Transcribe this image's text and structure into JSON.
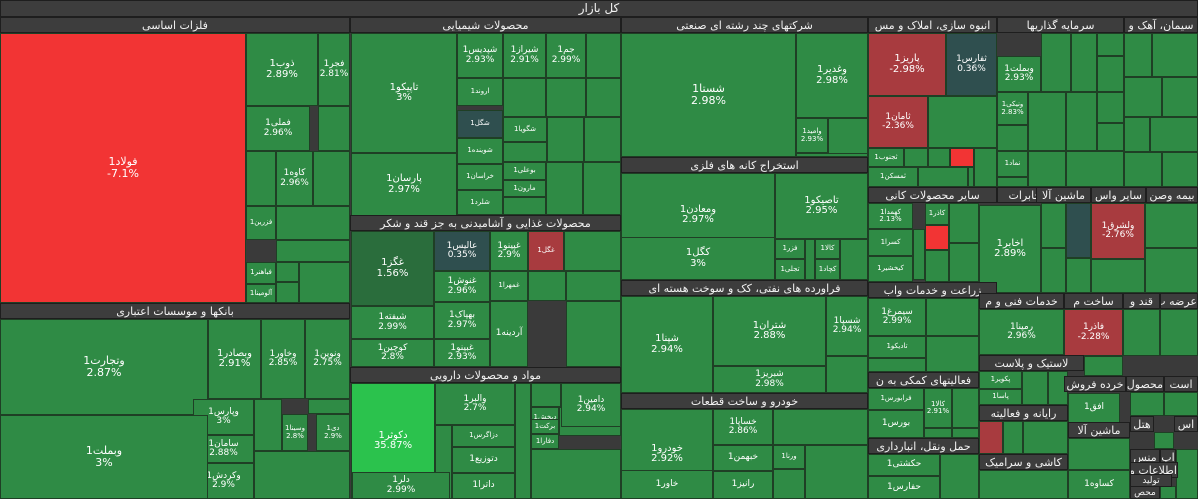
{
  "title": "کل بازار",
  "colors": {
    "green": "#2f8b45",
    "green_alt": "#2e8a44",
    "green_dark": "#2a6d3c",
    "green_bright": "#2bc24d",
    "red": "#f23434",
    "red_dark": "#a83b3f",
    "slate": "#2f4f4f",
    "header": "#3d3d3d"
  },
  "sectors": [
    {
      "id": "s1",
      "name": "فلزات اساسی"
    },
    {
      "id": "s2",
      "name": "محصولات شیمیایی"
    },
    {
      "id": "s3",
      "name": "شرکتهای چند رشته ای صنعتی"
    },
    {
      "id": "s4",
      "name": "انبوه سازی، املاک و مس"
    },
    {
      "id": "s5",
      "name": "سرمایه گذاریها"
    },
    {
      "id": "s6",
      "name": "سیمان، آهک و"
    },
    {
      "id": "s7",
      "name": "بانکها و موسسات اعتباری"
    },
    {
      "id": "s8",
      "name": "محصولات غذایی و آشامیدنی به جز قند و شکر"
    },
    {
      "id": "s9",
      "name": "استخراج کانه های فلزی"
    },
    {
      "id": "s10",
      "name": "سایر محصولات کانی"
    },
    {
      "id": "s11",
      "name": "مخابرات"
    },
    {
      "id": "s12",
      "name": "ماشین آلا"
    },
    {
      "id": "s13",
      "name": "سایر واس"
    },
    {
      "id": "s14",
      "name": "بیمه وصن"
    },
    {
      "id": "s15",
      "name": "فراورده های نفتی، کک و سوخت هسته ای"
    },
    {
      "id": "s16",
      "name": "زراعت و خدمات واب"
    },
    {
      "id": "s17",
      "name": "خدمات فنی و م"
    },
    {
      "id": "s18",
      "name": "ساخت م"
    },
    {
      "id": "s19",
      "name": "قند و"
    },
    {
      "id": "s20",
      "name": "عرضه ب"
    },
    {
      "id": "s21",
      "name": "مواد و محصولات دارویی"
    },
    {
      "id": "s22",
      "name": "لاستیک و پلاست"
    },
    {
      "id": "s23",
      "name": "فعالیتهای کمکی به ن"
    },
    {
      "id": "s24",
      "name": "خرده فروش"
    },
    {
      "id": "s25",
      "name": "محصول"
    },
    {
      "id": "s26",
      "name": "است"
    },
    {
      "id": "s27",
      "name": "خودرو و ساخت قطعات"
    },
    {
      "id": "s28",
      "name": "رایانه و فعالیته"
    },
    {
      "id": "s29",
      "name": "ماشین آلا"
    },
    {
      "id": "s30",
      "name": "هتل"
    },
    {
      "id": "s31",
      "name": "اس"
    },
    {
      "id": "s32",
      "name": "حمل ونقل، انبارداری"
    },
    {
      "id": "s33",
      "name": "کاشی و سرامیک"
    },
    {
      "id": "s34",
      "name": "منس"
    },
    {
      "id": "s35",
      "name": "اپ"
    },
    {
      "id": "s36",
      "name": "اطلاعات و"
    },
    {
      "id": "s37",
      "name": "تولید"
    },
    {
      "id": "s38",
      "name": "محص"
    }
  ],
  "tiles": [
    {
      "id": "t1",
      "name": "فولاد1",
      "change": "-7.1%"
    },
    {
      "id": "t2",
      "name": "ذوب1",
      "change": "2.89%"
    },
    {
      "id": "t3",
      "name": "فجر1",
      "change": "2.81%"
    },
    {
      "id": "t4",
      "name": "فملی1",
      "change": "2.96%"
    },
    {
      "id": "t5",
      "name": "کاوه1",
      "change": "2.96%"
    },
    {
      "id": "t6",
      "name": "فزرین1",
      "change": ""
    },
    {
      "id": "t7",
      "name": "فباهنر1",
      "change": ""
    },
    {
      "id": "t8",
      "name": "آلومینا1",
      "change": ""
    },
    {
      "id": "t9",
      "name": "تاپیکو1",
      "change": "3%"
    },
    {
      "id": "t10",
      "name": "پارسان1",
      "change": "2.97%"
    },
    {
      "id": "t11",
      "name": "شپدیس1",
      "change": "2.93%"
    },
    {
      "id": "t12",
      "name": "شیراز1",
      "change": "2.91%"
    },
    {
      "id": "t13",
      "name": "جم1",
      "change": "2.99%"
    },
    {
      "id": "t14",
      "name": "اروند1",
      "change": ""
    },
    {
      "id": "t15",
      "name": "شگل1",
      "change": ""
    },
    {
      "id": "t16",
      "name": "شوینده1",
      "change": ""
    },
    {
      "id": "t17",
      "name": "خراسان1",
      "change": ""
    },
    {
      "id": "t18",
      "name": "شلرد1",
      "change": ""
    },
    {
      "id": "t19",
      "name": "شگویا1",
      "change": ""
    },
    {
      "id": "t20",
      "name": "بوعلی1",
      "change": ""
    },
    {
      "id": "t21",
      "name": "مارون1",
      "change": ""
    },
    {
      "id": "t22",
      "name": "شستا1",
      "change": "2.98%"
    },
    {
      "id": "t23",
      "name": "وغدیر1",
      "change": "2.98%"
    },
    {
      "id": "t24",
      "name": "وامید1",
      "change": "2.93%"
    },
    {
      "id": "t25",
      "name": "پاریز1",
      "change": "-2.98%"
    },
    {
      "id": "t26",
      "name": "ثفارس1",
      "change": "0.36%"
    },
    {
      "id": "t27",
      "name": "ثامان1",
      "change": "-2.36%"
    },
    {
      "id": "t28",
      "name": "ثجنوب1",
      "change": ""
    },
    {
      "id": "t29",
      "name": "ثمسکن1",
      "change": ""
    },
    {
      "id": "t30",
      "name": "ومعادن1",
      "change": ""
    },
    {
      "id": "t31",
      "name": "وبملت1",
      "change": "2.93%"
    },
    {
      "id": "t32",
      "name": "ونیکی1",
      "change": "2.83%"
    },
    {
      "id": "t33",
      "name": "نماد1",
      "change": ""
    },
    {
      "id": "t34",
      "name": "وتجارت1",
      "change": "2.87%"
    },
    {
      "id": "t35",
      "name": "وبصادر1",
      "change": "2.91%"
    },
    {
      "id": "t36",
      "name": "وخاور1",
      "change": "2.85%"
    },
    {
      "id": "t37",
      "name": "ونوین1",
      "change": "2.75%"
    },
    {
      "id": "t38",
      "name": "وپارس1",
      "change": "3%"
    },
    {
      "id": "t39",
      "name": "وسینا1",
      "change": "2.8%"
    },
    {
      "id": "t40",
      "name": "دی1",
      "change": "2.9%"
    },
    {
      "id": "t41",
      "name": "سامان1",
      "change": "2.88%"
    },
    {
      "id": "t42",
      "name": "وکردش1",
      "change": "2.9%"
    },
    {
      "id": "t43",
      "name": "وبملت1",
      "change": "3%"
    },
    {
      "id": "t44",
      "name": "غگز1",
      "change": "1.56%"
    },
    {
      "id": "t45",
      "name": "شیفته1",
      "change": "2.99%"
    },
    {
      "id": "t46",
      "name": "کوچین1",
      "change": "2.8%"
    },
    {
      "id": "t47",
      "name": "عالیس1",
      "change": "0.35%"
    },
    {
      "id": "t48",
      "name": "غپینو1",
      "change": "2.9%"
    },
    {
      "id": "t49",
      "name": "غنوش1",
      "change": "2.96%"
    },
    {
      "id": "t50",
      "name": "بهپاک1",
      "change": "2.97%"
    },
    {
      "id": "t51",
      "name": "غبینو1",
      "change": "2.93%"
    },
    {
      "id": "t52",
      "name": "غمهرا1",
      "change": ""
    },
    {
      "id": "t53",
      "name": "آردینه1",
      "change": ""
    },
    {
      "id": "t54",
      "name": "غگل1",
      "change": ""
    },
    {
      "id": "t55",
      "name": "ومعادن1",
      "change": "2.97%"
    },
    {
      "id": "t56",
      "name": "تاصیکو1",
      "change": "2.95%"
    },
    {
      "id": "t57",
      "name": "کگل1",
      "change": "3%"
    },
    {
      "id": "t58",
      "name": "فزر1",
      "change": ""
    },
    {
      "id": "t59",
      "name": "کالا1",
      "change": ""
    },
    {
      "id": "t60",
      "name": "تجلی1",
      "change": ""
    },
    {
      "id": "t61",
      "name": "کچاد1",
      "change": ""
    },
    {
      "id": "t62",
      "name": "کاذر1",
      "change": ""
    },
    {
      "id": "t63",
      "name": "کهمدا1",
      "change": "2.13%"
    },
    {
      "id": "t64",
      "name": "کسرا1",
      "change": ""
    },
    {
      "id": "t65",
      "name": "کیخشیر1",
      "change": ""
    },
    {
      "id": "t66",
      "name": "اخابر1",
      "change": "2.89%"
    },
    {
      "id": "t67",
      "name": "ولشرق1",
      "change": "-2.76%"
    },
    {
      "id": "t68",
      "name": "شپنا1",
      "change": "2.94%"
    },
    {
      "id": "t69",
      "name": "شتران1",
      "change": "2.88%"
    },
    {
      "id": "t70",
      "name": "شسپا1",
      "change": "2.94%"
    },
    {
      "id": "t71",
      "name": "شبریز1",
      "change": "2.98%"
    },
    {
      "id": "t72",
      "name": "سیمرغ1",
      "change": "2.99%"
    },
    {
      "id": "t73",
      "name": "تادیکو1",
      "change": ""
    },
    {
      "id": "t74",
      "name": "رمپنا1",
      "change": "2.96%"
    },
    {
      "id": "t75",
      "name": "فاذر1",
      "change": "-2.28%"
    },
    {
      "id": "t76",
      "name": "دکوثر1",
      "change": "35.87%"
    },
    {
      "id": "t77",
      "name": "والبر1",
      "change": "2.7%"
    },
    {
      "id": "t78",
      "name": "دزاگرس1",
      "change": ""
    },
    {
      "id": "t79",
      "name": "دتوزیع1",
      "change": ""
    },
    {
      "id": "t80",
      "name": "دلر1",
      "change": "2.99%"
    },
    {
      "id": "t81",
      "name": "داترا1",
      "change": ""
    },
    {
      "id": "t82",
      "name": "دپخش1",
      "change": "3%"
    },
    {
      "id": "t83",
      "name": "دامین1",
      "change": "2.94%"
    },
    {
      "id": "t84",
      "name": "برکت1",
      "change": ""
    },
    {
      "id": "t85",
      "name": "دفارا1",
      "change": ""
    },
    {
      "id": "t86",
      "name": "پکویر1",
      "change": ""
    },
    {
      "id": "t87",
      "name": "پاسا1",
      "change": ""
    },
    {
      "id": "t88",
      "name": "فرابورس1",
      "change": ""
    },
    {
      "id": "t89",
      "name": "بورس1",
      "change": ""
    },
    {
      "id": "t90",
      "name": "کالا1",
      "change": "2.91%"
    },
    {
      "id": "t91",
      "name": "افق1",
      "change": ""
    },
    {
      "id": "t92",
      "name": "خودرو1",
      "change": "2.92%"
    },
    {
      "id": "t93",
      "name": "خاور1",
      "change": ""
    },
    {
      "id": "t94",
      "name": "خساپا1",
      "change": "2.86%"
    },
    {
      "id": "t95",
      "name": "خبهمن1",
      "change": ""
    },
    {
      "id": "t96",
      "name": "ورنا1",
      "change": ""
    },
    {
      "id": "t97",
      "name": "رانیز1",
      "change": ""
    },
    {
      "id": "t98",
      "name": "حکشتی1",
      "change": ""
    },
    {
      "id": "t99",
      "name": "حفارس1",
      "change": ""
    },
    {
      "id": "t100",
      "name": "کساوه1",
      "change": ""
    }
  ]
}
